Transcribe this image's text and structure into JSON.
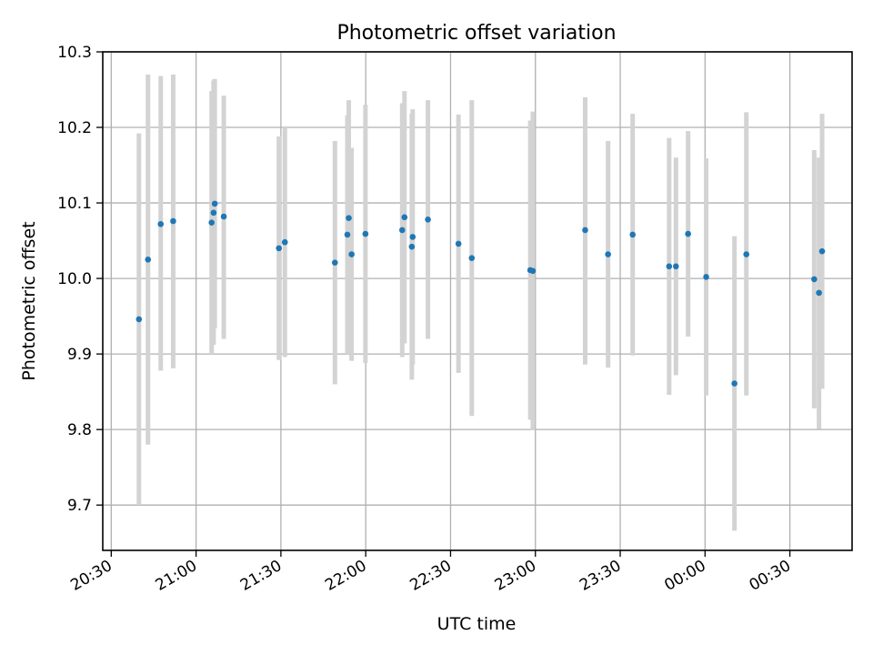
{
  "chart_data": {
    "type": "scatter",
    "title": "Photometric offset variation",
    "xlabel": "UTC time",
    "ylabel": "Photometric offset",
    "x_unit": "minutes after 20:30 UTC",
    "xlim": [
      -3,
      262
    ],
    "ylim": [
      9.64,
      10.3
    ],
    "x_ticks": [
      {
        "value": 0,
        "label": "20:30"
      },
      {
        "value": 30,
        "label": "21:00"
      },
      {
        "value": 60,
        "label": "21:30"
      },
      {
        "value": 90,
        "label": "22:00"
      },
      {
        "value": 120,
        "label": "22:30"
      },
      {
        "value": 150,
        "label": "23:00"
      },
      {
        "value": 180,
        "label": "23:30"
      },
      {
        "value": 210,
        "label": "00:00"
      },
      {
        "value": 240,
        "label": "00:30"
      }
    ],
    "y_ticks": [
      {
        "value": 9.7,
        "label": "9.7"
      },
      {
        "value": 9.8,
        "label": "9.8"
      },
      {
        "value": 9.9,
        "label": "9.9"
      },
      {
        "value": 10.0,
        "label": "10.0"
      },
      {
        "value": 10.1,
        "label": "10.1"
      },
      {
        "value": 10.2,
        "label": "10.2"
      },
      {
        "value": 10.3,
        "label": "10.3"
      }
    ],
    "grid": true,
    "colors": {
      "point": "#1f77b4",
      "errorbar": "#d3d3d3",
      "grid": "#b0b0b0"
    },
    "points": [
      {
        "t": 9.8,
        "y": 9.946,
        "lo": 9.7,
        "hi": 10.192
      },
      {
        "t": 13.0,
        "y": 10.025,
        "lo": 9.78,
        "hi": 10.27
      },
      {
        "t": 17.5,
        "y": 10.072,
        "lo": 9.878,
        "hi": 10.268
      },
      {
        "t": 21.9,
        "y": 10.076,
        "lo": 9.881,
        "hi": 10.27
      },
      {
        "t": 35.5,
        "y": 10.074,
        "lo": 9.9,
        "hi": 10.248
      },
      {
        "t": 36.2,
        "y": 10.087,
        "lo": 9.912,
        "hi": 10.262
      },
      {
        "t": 36.6,
        "y": 10.099,
        "lo": 9.934,
        "hi": 10.264
      },
      {
        "t": 39.8,
        "y": 10.082,
        "lo": 9.92,
        "hi": 10.242
      },
      {
        "t": 59.3,
        "y": 10.04,
        "lo": 9.892,
        "hi": 10.188
      },
      {
        "t": 61.4,
        "y": 10.048,
        "lo": 9.896,
        "hi": 10.2
      },
      {
        "t": 79.1,
        "y": 10.021,
        "lo": 9.86,
        "hi": 10.182
      },
      {
        "t": 83.5,
        "y": 10.058,
        "lo": 9.9,
        "hi": 10.216
      },
      {
        "t": 84.0,
        "y": 10.08,
        "lo": 9.924,
        "hi": 10.236
      },
      {
        "t": 85.0,
        "y": 10.032,
        "lo": 9.891,
        "hi": 10.173
      },
      {
        "t": 89.9,
        "y": 10.059,
        "lo": 9.888,
        "hi": 10.23
      },
      {
        "t": 102.9,
        "y": 10.064,
        "lo": 9.896,
        "hi": 10.232
      },
      {
        "t": 103.7,
        "y": 10.081,
        "lo": 9.914,
        "hi": 10.248
      },
      {
        "t": 106.3,
        "y": 10.042,
        "lo": 9.866,
        "hi": 10.218
      },
      {
        "t": 106.6,
        "y": 10.055,
        "lo": 9.886,
        "hi": 10.224
      },
      {
        "t": 112.0,
        "y": 10.078,
        "lo": 9.92,
        "hi": 10.236
      },
      {
        "t": 122.8,
        "y": 10.046,
        "lo": 9.875,
        "hi": 10.217
      },
      {
        "t": 127.5,
        "y": 10.027,
        "lo": 9.818,
        "hi": 10.236
      },
      {
        "t": 148.2,
        "y": 10.011,
        "lo": 9.813,
        "hi": 10.209
      },
      {
        "t": 149.1,
        "y": 10.01,
        "lo": 9.799,
        "hi": 10.221
      },
      {
        "t": 167.6,
        "y": 10.064,
        "lo": 9.886,
        "hi": 10.24
      },
      {
        "t": 175.7,
        "y": 10.032,
        "lo": 9.882,
        "hi": 10.182
      },
      {
        "t": 184.4,
        "y": 10.058,
        "lo": 9.898,
        "hi": 10.218
      },
      {
        "t": 197.3,
        "y": 10.016,
        "lo": 9.846,
        "hi": 10.186
      },
      {
        "t": 199.7,
        "y": 10.016,
        "lo": 9.872,
        "hi": 10.16
      },
      {
        "t": 204.0,
        "y": 10.059,
        "lo": 9.923,
        "hi": 10.195
      },
      {
        "t": 210.4,
        "y": 10.002,
        "lo": 9.845,
        "hi": 10.159
      },
      {
        "t": 220.4,
        "y": 9.861,
        "lo": 9.666,
        "hi": 10.056
      },
      {
        "t": 224.6,
        "y": 10.032,
        "lo": 9.845,
        "hi": 10.22
      },
      {
        "t": 248.6,
        "y": 9.999,
        "lo": 9.828,
        "hi": 10.17
      },
      {
        "t": 250.3,
        "y": 9.981,
        "lo": 9.801,
        "hi": 10.16
      },
      {
        "t": 251.4,
        "y": 10.036,
        "lo": 9.854,
        "hi": 10.218
      }
    ]
  }
}
